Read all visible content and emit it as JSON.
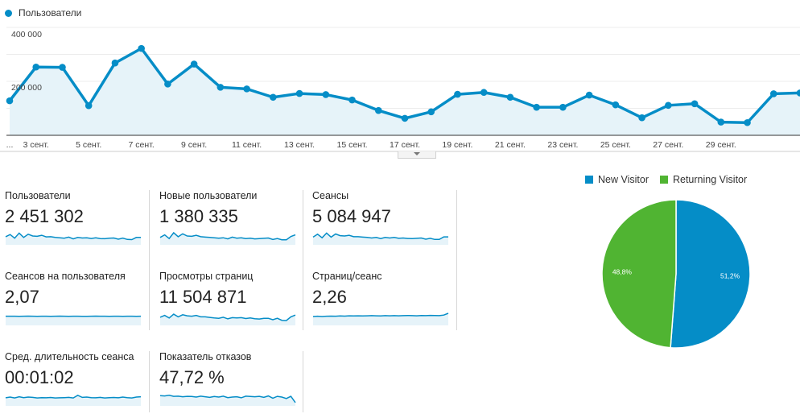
{
  "colors": {
    "blue": "#058dc7",
    "fill": "#e6f3f9",
    "green": "#50b432"
  },
  "main": {
    "legend": "Пользователи",
    "y_labels": [
      "400 000",
      "200 000"
    ],
    "x_labels": [
      "...",
      "3 сент.",
      "5 сент.",
      "7 сент.",
      "9 сент.",
      "11 сент.",
      "13 сент.",
      "15 сент.",
      "17 сент.",
      "19 сент.",
      "21 сент.",
      "23 сент.",
      "25 сент.",
      "27 сент.",
      "29 сент."
    ]
  },
  "metrics": [
    {
      "label": "Пользователи",
      "value": "2 451 302"
    },
    {
      "label": "Новые пользователи",
      "value": "1 380 335"
    },
    {
      "label": "Сеансы",
      "value": "5 084 947"
    },
    {
      "label": "Сеансов на пользователя",
      "value": "2,07"
    },
    {
      "label": "Просмотры страниц",
      "value": "11 504 871"
    },
    {
      "label": "Страниц/сеанс",
      "value": "2,26"
    },
    {
      "label": "Сред. длительность сеанса",
      "value": "00:01:02"
    },
    {
      "label": "Показатель отказов",
      "value": "47,72 %"
    }
  ],
  "pie": {
    "legend": [
      "New Visitor",
      "Returning Visitor"
    ],
    "labels": [
      "51,2%",
      "48,8%"
    ]
  },
  "chart_data": [
    {
      "type": "line",
      "title": "",
      "series": [
        {
          "name": "Пользователи",
          "values": [
            128000,
            253000,
            252000,
            110000,
            268000,
            322000,
            190000,
            264000,
            178000,
            172000,
            141000,
            155000,
            151000,
            131000,
            92000,
            63000,
            87000,
            152000,
            159000,
            141000,
            104000,
            104000,
            149000,
            113000,
            65000,
            111000,
            117000,
            49000,
            47000,
            154000,
            157000
          ]
        }
      ],
      "x_tick_labels": [
        "...",
        "3 сент.",
        "5 сент.",
        "7 сент.",
        "9 сент.",
        "11 сент.",
        "13 сент.",
        "15 сент.",
        "17 сент.",
        "19 сент.",
        "21 сент.",
        "23 сент.",
        "25 сент.",
        "27 сент.",
        "29 сент."
      ],
      "y_tick_labels": [
        "400 000",
        "200 000"
      ],
      "ylim": [
        0,
        400000
      ],
      "grid": true,
      "legend": "top-left"
    },
    {
      "type": "pie",
      "categories": [
        "New Visitor",
        "Returning Visitor"
      ],
      "values": [
        51.2,
        48.8
      ],
      "legend": "top"
    }
  ],
  "sparklines": [
    [
      0.45,
      0.6,
      0.35,
      0.7,
      0.4,
      0.62,
      0.5,
      0.48,
      0.55,
      0.44,
      0.45,
      0.4,
      0.38,
      0.35,
      0.42,
      0.3,
      0.4,
      0.36,
      0.38,
      0.33,
      0.37,
      0.32,
      0.31,
      0.35,
      0.36,
      0.28,
      0.35,
      0.26,
      0.25,
      0.4,
      0.4
    ],
    [
      0.4,
      0.58,
      0.32,
      0.72,
      0.45,
      0.65,
      0.5,
      0.48,
      0.55,
      0.45,
      0.42,
      0.4,
      0.37,
      0.35,
      0.38,
      0.3,
      0.42,
      0.35,
      0.38,
      0.32,
      0.35,
      0.3,
      0.32,
      0.34,
      0.36,
      0.26,
      0.33,
      0.24,
      0.24,
      0.46,
      0.58
    ],
    [
      0.42,
      0.62,
      0.38,
      0.7,
      0.42,
      0.64,
      0.52,
      0.5,
      0.55,
      0.45,
      0.45,
      0.42,
      0.4,
      0.36,
      0.4,
      0.32,
      0.4,
      0.36,
      0.4,
      0.34,
      0.36,
      0.33,
      0.32,
      0.34,
      0.36,
      0.28,
      0.34,
      0.26,
      0.26,
      0.44,
      0.44
    ],
    [
      0.52,
      0.52,
      0.52,
      0.51,
      0.52,
      0.53,
      0.52,
      0.51,
      0.52,
      0.52,
      0.51,
      0.52,
      0.53,
      0.52,
      0.51,
      0.52,
      0.52,
      0.51,
      0.51,
      0.52,
      0.53,
      0.52,
      0.52,
      0.51,
      0.52,
      0.52,
      0.51,
      0.52,
      0.52,
      0.51,
      0.52
    ],
    [
      0.45,
      0.58,
      0.4,
      0.66,
      0.48,
      0.62,
      0.55,
      0.52,
      0.58,
      0.48,
      0.48,
      0.44,
      0.4,
      0.38,
      0.45,
      0.34,
      0.42,
      0.4,
      0.42,
      0.36,
      0.4,
      0.35,
      0.33,
      0.38,
      0.38,
      0.28,
      0.38,
      0.24,
      0.22,
      0.48,
      0.6
    ],
    [
      0.5,
      0.52,
      0.5,
      0.52,
      0.53,
      0.52,
      0.54,
      0.53,
      0.55,
      0.54,
      0.55,
      0.54,
      0.55,
      0.56,
      0.55,
      0.54,
      0.56,
      0.55,
      0.56,
      0.55,
      0.56,
      0.57,
      0.56,
      0.55,
      0.57,
      0.56,
      0.58,
      0.57,
      0.56,
      0.6,
      0.72
    ],
    [
      0.45,
      0.5,
      0.44,
      0.52,
      0.46,
      0.5,
      0.48,
      0.44,
      0.46,
      0.45,
      0.47,
      0.44,
      0.45,
      0.46,
      0.48,
      0.44,
      0.62,
      0.48,
      0.5,
      0.46,
      0.45,
      0.48,
      0.44,
      0.46,
      0.47,
      0.45,
      0.5,
      0.46,
      0.44,
      0.5,
      0.52
    ],
    [
      0.6,
      0.58,
      0.62,
      0.55,
      0.56,
      0.52,
      0.55,
      0.54,
      0.5,
      0.56,
      0.52,
      0.48,
      0.54,
      0.5,
      0.56,
      0.46,
      0.5,
      0.52,
      0.45,
      0.56,
      0.54,
      0.52,
      0.55,
      0.48,
      0.58,
      0.42,
      0.55,
      0.5,
      0.4,
      0.55,
      0.12
    ]
  ]
}
